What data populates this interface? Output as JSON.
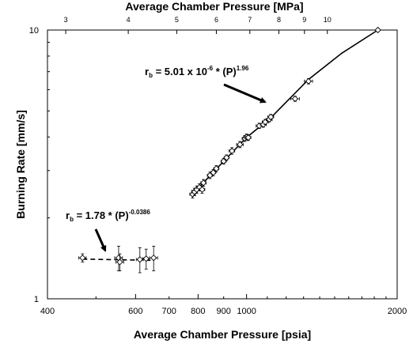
{
  "chart_data": {
    "type": "scatter",
    "xscale": "log",
    "yscale": "log",
    "xlabel": "Average Chamber Pressure [psia]",
    "x2label": "Average Chamber Pressure [MPa]",
    "ylabel": "Burning Rate [mm/s]",
    "xlim": [
      400,
      2000
    ],
    "ylim": [
      1,
      10
    ],
    "x2lim": [
      2.758,
      13.79
    ],
    "xticks": [
      400,
      600,
      800,
      1000,
      2000
    ],
    "xtick_labels": [
      "400",
      "600",
      "800",
      "1000",
      "2000"
    ],
    "xticks_minor_labeled": [
      700,
      900
    ],
    "xtick_minor_labels": [
      "700",
      "900"
    ],
    "x2ticks": [
      3,
      4,
      5,
      6,
      7,
      8,
      9,
      10
    ],
    "x2tick_labels": [
      "3",
      "4",
      "5",
      "6",
      "7",
      "8",
      "9",
      "10"
    ],
    "yticks": [
      1,
      10
    ],
    "ytick_labels": [
      "1",
      "10"
    ],
    "grid": false,
    "legend": "none",
    "series": [
      {
        "points": [
          {
            "x": 470,
            "y": 1.42,
            "xerr": 8,
            "yerr": 0.05
          },
          {
            "x": 555,
            "y": 1.42,
            "xerr": 10,
            "yerr": 0.15
          },
          {
            "x": 558,
            "y": 1.37,
            "xerr": 10,
            "yerr": 0.1
          },
          {
            "x": 612,
            "y": 1.4,
            "xerr": 10,
            "yerr": 0.15
          },
          {
            "x": 630,
            "y": 1.41,
            "xerr": 10,
            "yerr": 0.12
          },
          {
            "x": 652,
            "y": 1.42,
            "xerr": 12,
            "yerr": 0.15
          }
        ]
      },
      {
        "points": [
          {
            "x": 780,
            "y": 2.45,
            "xerr": 10,
            "yerr": 0.08
          },
          {
            "x": 787,
            "y": 2.5,
            "xerr": 10,
            "yerr": 0.08
          },
          {
            "x": 795,
            "y": 2.55,
            "xerr": 10,
            "yerr": 0.08
          },
          {
            "x": 805,
            "y": 2.6,
            "xerr": 10,
            "yerr": 0.08
          },
          {
            "x": 815,
            "y": 2.55,
            "xerr": 10,
            "yerr": 0.08
          },
          {
            "x": 820,
            "y": 2.7,
            "xerr": 10,
            "yerr": 0.08
          },
          {
            "x": 845,
            "y": 2.88,
            "xerr": 10,
            "yerr": 0.08
          },
          {
            "x": 858,
            "y": 2.95,
            "xerr": 10,
            "yerr": 0.08
          },
          {
            "x": 870,
            "y": 3.05,
            "xerr": 10,
            "yerr": 0.08
          },
          {
            "x": 900,
            "y": 3.25,
            "xerr": 10,
            "yerr": 0.08
          },
          {
            "x": 912,
            "y": 3.35,
            "xerr": 10,
            "yerr": 0.08
          },
          {
            "x": 935,
            "y": 3.55,
            "xerr": 12,
            "yerr": 0.1
          },
          {
            "x": 970,
            "y": 3.75,
            "xerr": 15,
            "yerr": 0.1
          },
          {
            "x": 992,
            "y": 3.95,
            "xerr": 12,
            "yerr": 0.1
          },
          {
            "x": 1000,
            "y": 4.0,
            "xerr": 12,
            "yerr": 0.1
          },
          {
            "x": 1008,
            "y": 3.98,
            "xerr": 12,
            "yerr": 0.1
          },
          {
            "x": 1060,
            "y": 4.4,
            "xerr": 15,
            "yerr": 0.1
          },
          {
            "x": 1080,
            "y": 4.45,
            "xerr": 15,
            "yerr": 0.1
          },
          {
            "x": 1090,
            "y": 4.55,
            "xerr": 15,
            "yerr": 0.1
          },
          {
            "x": 1110,
            "y": 4.65,
            "xerr": 15,
            "yerr": 0.1
          },
          {
            "x": 1118,
            "y": 4.75,
            "xerr": 15,
            "yerr": 0.1
          },
          {
            "x": 1250,
            "y": 5.55,
            "xerr": 25,
            "yerr": 0.12
          },
          {
            "x": 1330,
            "y": 6.45,
            "xerr": 25,
            "yerr": 0.15
          },
          {
            "x": 1830,
            "y": 10.0,
            "xerr": 0,
            "yerr": 0
          }
        ]
      }
    ],
    "fit_lines": [
      {
        "style": "dashed",
        "x": [
          470,
          652
        ],
        "y": [
          1.405,
          1.39
        ]
      },
      {
        "style": "solid",
        "x": [
          780,
          900,
          1000,
          1118,
          1330,
          1550,
          1830
        ],
        "y": [
          2.45,
          3.25,
          3.98,
          4.72,
          6.55,
          8.2,
          10.0
        ]
      }
    ],
    "annotations": [
      {
        "prefix": "r",
        "sub": "b",
        "body": " = 5.01 x 10",
        "sup": "-6",
        "body2": " * (P)",
        "sup2": "1.96"
      },
      {
        "prefix": "r",
        "sub": "b",
        "body": " = 1.78 * (P)",
        "sup": "-0.0386",
        "body2": "",
        "sup2": ""
      }
    ]
  }
}
